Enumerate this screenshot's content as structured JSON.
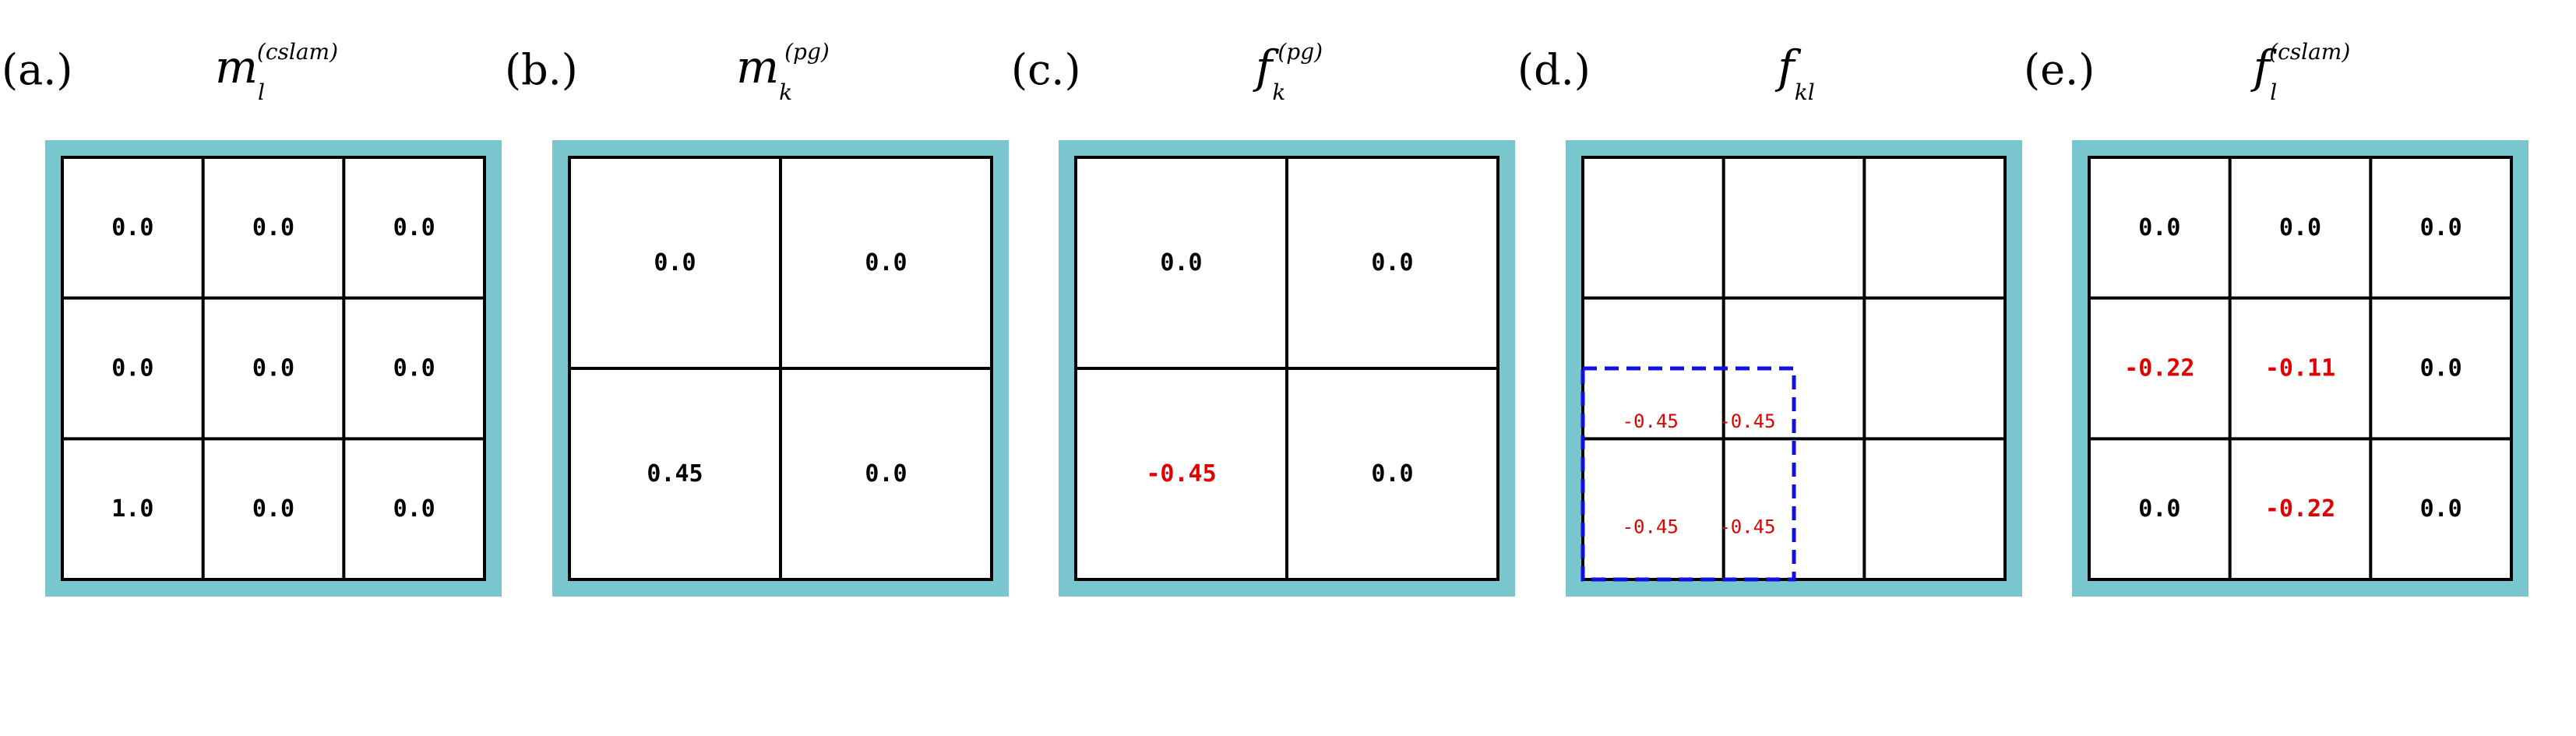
{
  "panels": [
    {
      "label": "(a.)",
      "title": {
        "base": "m",
        "sub": "l",
        "sup": "(cslam)"
      },
      "grid": {
        "rows": 3,
        "cols": 3,
        "cells": [
          [
            {
              "v": "0.0",
              "c": "black"
            },
            {
              "v": "0.0",
              "c": "black"
            },
            {
              "v": "0.0",
              "c": "black"
            }
          ],
          [
            {
              "v": "0.0",
              "c": "black"
            },
            {
              "v": "0.0",
              "c": "black"
            },
            {
              "v": "0.0",
              "c": "black"
            }
          ],
          [
            {
              "v": "1.0",
              "c": "black"
            },
            {
              "v": "0.0",
              "c": "black"
            },
            {
              "v": "0.0",
              "c": "black"
            }
          ]
        ]
      }
    },
    {
      "label": "(b.)",
      "title": {
        "base": "m",
        "sub": "k",
        "sup": "(pg)"
      },
      "grid": {
        "rows": 2,
        "cols": 2,
        "cells": [
          [
            {
              "v": "0.0",
              "c": "black"
            },
            {
              "v": "0.0",
              "c": "black"
            }
          ],
          [
            {
              "v": "0.45",
              "c": "black"
            },
            {
              "v": "0.0",
              "c": "black"
            }
          ]
        ]
      }
    },
    {
      "label": "(c.)",
      "title": {
        "base": "f",
        "sub": "k",
        "sup": "(pg)"
      },
      "grid": {
        "rows": 2,
        "cols": 2,
        "cells": [
          [
            {
              "v": "0.0",
              "c": "black"
            },
            {
              "v": "0.0",
              "c": "black"
            }
          ],
          [
            {
              "v": "-0.45",
              "c": "red"
            },
            {
              "v": "0.0",
              "c": "black"
            }
          ]
        ]
      }
    },
    {
      "label": "(d.)",
      "title": {
        "base": "f",
        "sub": "kl",
        "sup": ""
      },
      "grid": {
        "rows": 3,
        "cols": 3,
        "subcells": [
          {
            "v": "-0.45",
            "c": "red",
            "pos": "tl"
          },
          {
            "v": "-0.45",
            "c": "red",
            "pos": "tr"
          },
          {
            "v": "-0.45",
            "c": "red",
            "pos": "bl"
          },
          {
            "v": "-0.45",
            "c": "red",
            "pos": "br"
          }
        ],
        "highlight": {
          "color": "#1010e0",
          "style": "dashed",
          "region": "bottom-left 1.5x1.5 cells"
        }
      }
    },
    {
      "label": "(e.)",
      "title": {
        "base": "f",
        "sub": "l",
        "sup": "(cslam)"
      },
      "grid": {
        "rows": 3,
        "cols": 3,
        "cells": [
          [
            {
              "v": "0.0",
              "c": "black"
            },
            {
              "v": "0.0",
              "c": "black"
            },
            {
              "v": "0.0",
              "c": "black"
            }
          ],
          [
            {
              "v": "-0.22",
              "c": "red"
            },
            {
              "v": "-0.11",
              "c": "red"
            },
            {
              "v": "0.0",
              "c": "black"
            }
          ],
          [
            {
              "v": "0.0",
              "c": "black"
            },
            {
              "v": "-0.22",
              "c": "red"
            },
            {
              "v": "0.0",
              "c": "black"
            }
          ]
        ]
      }
    }
  ],
  "colors": {
    "frame": "#7ac6cf",
    "grid_line": "#000000",
    "negative": "#e00000",
    "positive": "#000000",
    "highlight": "#1010e0"
  }
}
